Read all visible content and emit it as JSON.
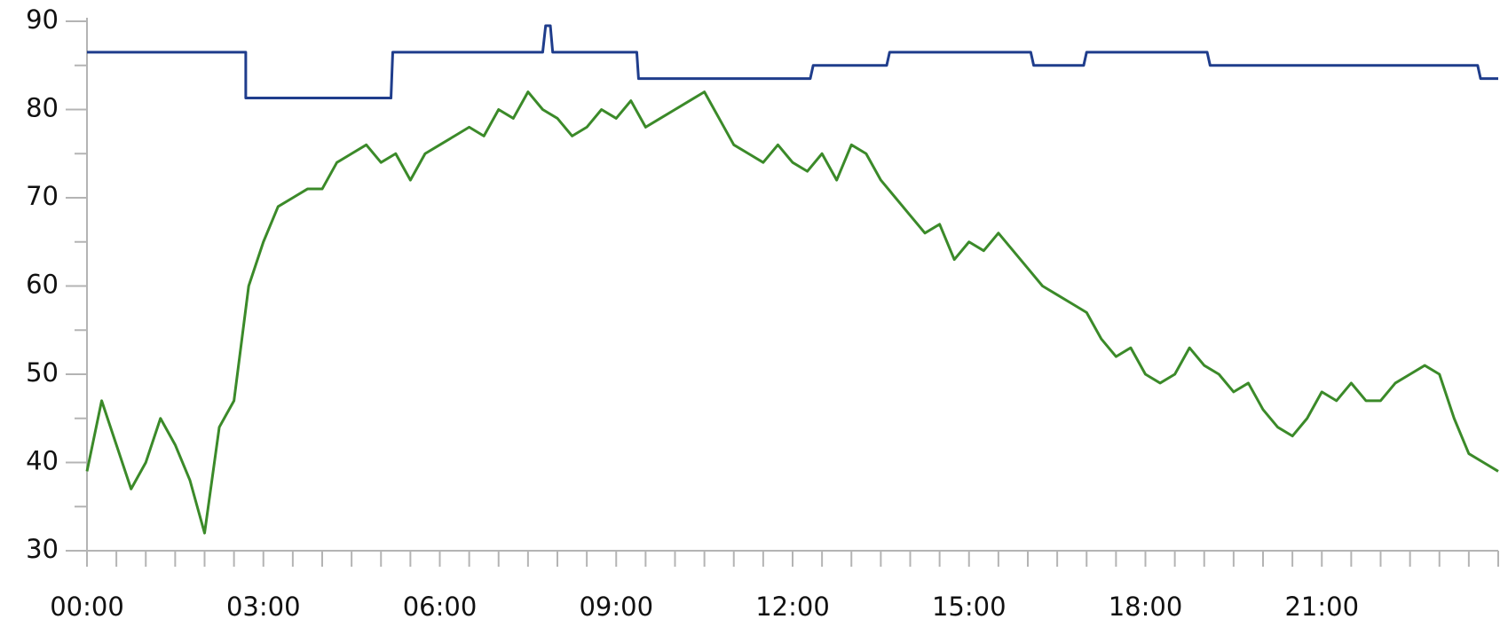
{
  "chart_data": {
    "type": "line",
    "xlim": [
      0,
      24
    ],
    "xticks": [
      {
        "value": 0,
        "label": "00:00"
      },
      {
        "value": 3,
        "label": "03:00"
      },
      {
        "value": 6,
        "label": "06:00"
      },
      {
        "value": 9,
        "label": "09:00"
      },
      {
        "value": 12,
        "label": "12:00"
      },
      {
        "value": 15,
        "label": "15:00"
      },
      {
        "value": 18,
        "label": "18:00"
      },
      {
        "value": 21,
        "label": "21:00"
      }
    ],
    "xminorticks": [
      0.5,
      1,
      1.5,
      2,
      2.5,
      3.5,
      4,
      4.5,
      5,
      5.5,
      6.5,
      7,
      7.5,
      8,
      8.5,
      9.5,
      10,
      10.5,
      11,
      11.5,
      12.5,
      13,
      13.5,
      14,
      14.5,
      15.5,
      16,
      16.5,
      17,
      17.5,
      18.5,
      19,
      19.5,
      20,
      20.5,
      21.5,
      22,
      22.5,
      23,
      23.5,
      24
    ],
    "ylim": [
      30,
      90
    ],
    "yticks": [
      30,
      40,
      50,
      60,
      70,
      80,
      90
    ],
    "yminorticks": [
      35,
      45,
      55,
      65,
      75,
      85
    ],
    "grid": false,
    "series": [
      {
        "color": "#1f3d8c",
        "x": [
          0,
          2.7,
          2.7,
          5.17,
          5.2,
          7.75,
          7.8,
          7.88,
          7.92,
          9.35,
          9.38,
          12.3,
          12.35,
          13.6,
          13.65,
          16.05,
          16.1,
          16.95,
          17.0,
          19.05,
          19.1,
          23.65,
          23.7,
          24
        ],
        "values": [
          86.5,
          86.5,
          81.3,
          81.3,
          86.5,
          86.5,
          89.5,
          89.5,
          86.5,
          86.5,
          83.5,
          83.5,
          85,
          85,
          86.5,
          86.5,
          85,
          85,
          86.5,
          86.5,
          85,
          85,
          83.5,
          83.5
        ]
      },
      {
        "color": "#3b8a29",
        "x": [
          0,
          0.25,
          0.5,
          0.75,
          1,
          1.25,
          1.5,
          1.75,
          2,
          2.25,
          2.5,
          2.75,
          3,
          3.25,
          3.5,
          3.75,
          4,
          4.25,
          4.5,
          4.75,
          5,
          5.25,
          5.5,
          5.75,
          6,
          6.25,
          6.5,
          6.75,
          7,
          7.25,
          7.5,
          7.75,
          8,
          8.25,
          8.5,
          8.75,
          9,
          9.25,
          9.5,
          9.75,
          10,
          10.25,
          10.5,
          10.75,
          11,
          11.25,
          11.5,
          11.75,
          12,
          12.25,
          12.5,
          12.75,
          13,
          13.25,
          13.5,
          13.75,
          14,
          14.25,
          14.5,
          14.75,
          15,
          15.25,
          15.5,
          15.75,
          16,
          16.25,
          16.5,
          16.75,
          17,
          17.25,
          17.5,
          17.75,
          18,
          18.25,
          18.5,
          18.75,
          19,
          19.25,
          19.5,
          19.75,
          20,
          20.25,
          20.5,
          20.75,
          21,
          21.25,
          21.5,
          21.75,
          22,
          22.25,
          22.5,
          22.75,
          23,
          23.25,
          23.5,
          23.75,
          24
        ],
        "values": [
          39,
          47,
          42,
          37,
          40,
          45,
          42,
          38,
          32,
          44,
          47,
          60,
          65,
          69,
          70,
          71,
          71,
          74,
          75,
          76,
          74,
          75,
          72,
          75,
          76,
          77,
          78,
          77,
          80,
          79,
          82,
          80,
          79,
          77,
          78,
          80,
          79,
          81,
          78,
          79,
          80,
          81,
          82,
          79,
          76,
          75,
          74,
          76,
          74,
          73,
          75,
          72,
          76,
          75,
          72,
          70,
          68,
          66,
          67,
          63,
          65,
          64,
          66,
          64,
          62,
          60,
          59,
          58,
          57,
          54,
          52,
          53,
          50,
          49,
          50,
          53,
          51,
          50,
          48,
          49,
          46,
          44,
          43,
          45,
          48,
          47,
          49,
          47,
          47,
          49,
          50,
          51,
          50,
          45,
          41,
          40,
          39
        ]
      }
    ]
  }
}
